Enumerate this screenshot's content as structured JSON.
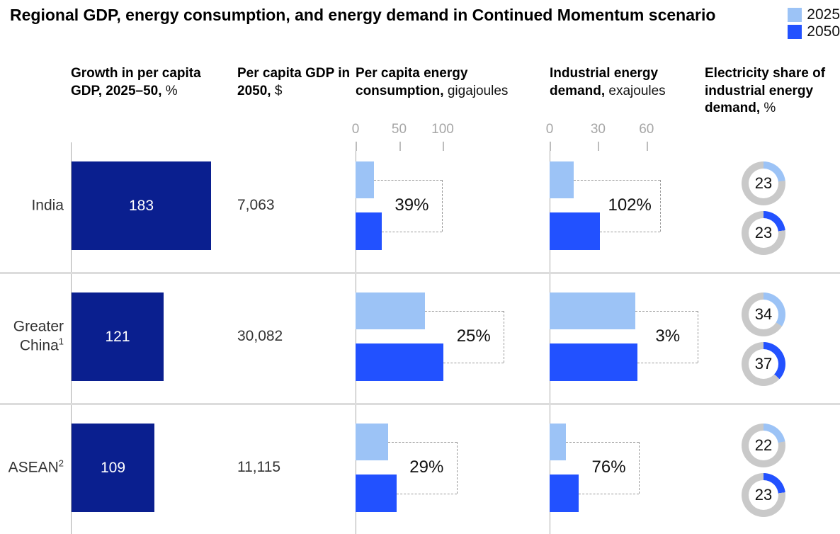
{
  "title": "Regional GDP, energy consumption, and energy demand in Continued Momentum scenario",
  "legend": [
    {
      "label": "2025",
      "color": "#9CC3F6"
    },
    {
      "label": "2050",
      "color": "#2251FF"
    }
  ],
  "columns": [
    {
      "bold": "Growth in per capita GDP, 2025–50,",
      "unit": " %"
    },
    {
      "bold": "Per capita GDP in 2050,",
      "unit": " $"
    },
    {
      "bold": "Per capita energy consumption,",
      "unit": " gigajoules"
    },
    {
      "bold": "Industrial energy demand,",
      "unit": " exajoules"
    },
    {
      "bold": "Electricity share of industrial energy demand,",
      "unit": " %"
    }
  ],
  "axes": {
    "consumption": {
      "ticks": [
        0,
        50,
        100
      ]
    },
    "demand": {
      "ticks": [
        0,
        30,
        60
      ]
    }
  },
  "regions": [
    {
      "label": "India",
      "sup": ""
    },
    {
      "label": "Greater China",
      "sup": "1"
    },
    {
      "label": "ASEAN",
      "sup": "2"
    }
  ],
  "colors": {
    "gdp_bar": "#0A1F8F",
    "y2025": "#9CC3F6",
    "y2050": "#2251FF",
    "donut_track": "#C9C9C9"
  },
  "chart_data": {
    "type": "bar",
    "title": "Regional GDP, energy consumption, and energy demand in Continued Momentum scenario",
    "categories": [
      "India",
      "Greater China¹",
      "ASEAN²"
    ],
    "legend_entries": [
      "2025",
      "2050"
    ],
    "legend_position": "top-right",
    "panels": {
      "gdp_growth": {
        "label": "Growth in per capita GDP, 2025–50, %",
        "type": "bar",
        "values": [
          183,
          121,
          109
        ]
      },
      "gdp_2050": {
        "label": "Per capita GDP in 2050, $",
        "type": "table",
        "display_values": [
          "7,063",
          "30,082",
          "11,115"
        ],
        "values": [
          7063,
          30082,
          11115
        ]
      },
      "consumption": {
        "label": "Per capita energy consumption, gigajoules",
        "type": "bar",
        "axis_ticks": [
          0,
          50,
          100
        ],
        "xlim": [
          0,
          110
        ],
        "series": [
          {
            "name": "2025",
            "values": [
              21,
              80,
              37
            ]
          },
          {
            "name": "2050",
            "values": [
              30,
              101,
              47
            ]
          }
        ],
        "growth_labels": [
          "39%",
          "25%",
          "29%"
        ]
      },
      "demand": {
        "label": "Industrial energy demand, exajoules",
        "type": "bar",
        "axis_ticks": [
          0,
          30,
          60
        ],
        "xlim": [
          0,
          70
        ],
        "series": [
          {
            "name": "2025",
            "values": [
              15,
              53,
              10
            ]
          },
          {
            "name": "2050",
            "values": [
              31,
              54.5,
              18
            ]
          }
        ],
        "growth_labels": [
          "102%",
          "3%",
          "76%"
        ]
      },
      "electricity_share": {
        "label": "Electricity share of industrial energy demand, %",
        "type": "donut",
        "series": [
          {
            "name": "2025",
            "values": [
              23,
              34,
              22
            ]
          },
          {
            "name": "2050",
            "values": [
              23,
              37,
              23
            ]
          }
        ]
      }
    }
  }
}
